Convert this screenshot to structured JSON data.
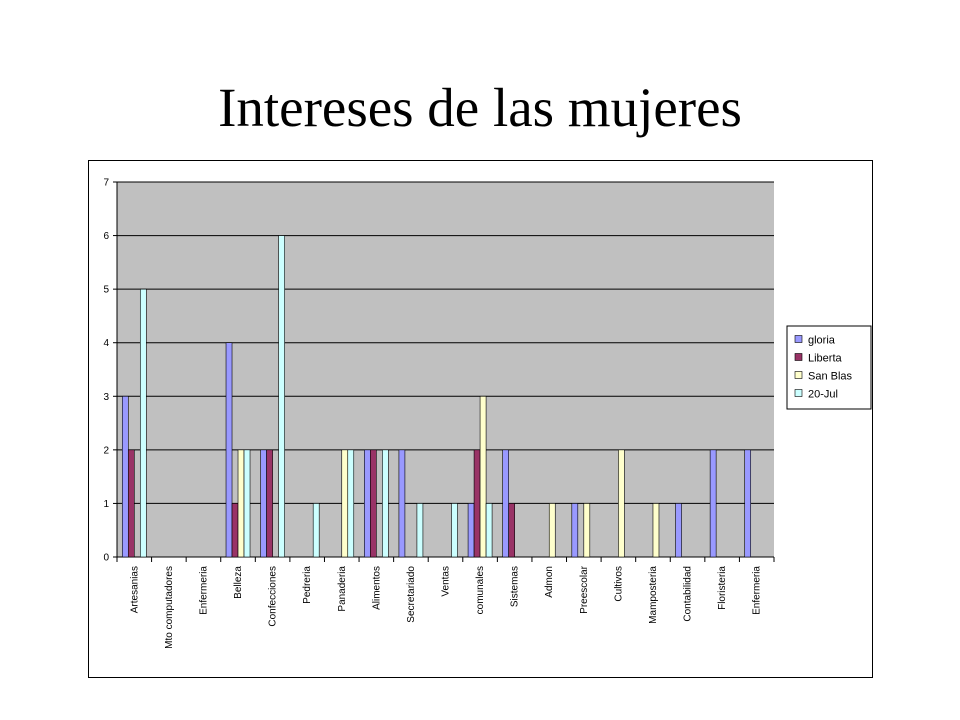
{
  "slide": {
    "title": "Intereses de las mujeres"
  },
  "colors": {
    "plot_bg": "#c0c0c0",
    "gridline": "#000000"
  },
  "chart_data": {
    "type": "bar",
    "title": "",
    "xlabel": "",
    "ylabel": "",
    "ylim": [
      0,
      7
    ],
    "yticks": [
      0,
      1,
      2,
      3,
      4,
      5,
      6,
      7
    ],
    "grid": true,
    "legend_position": "right",
    "categories": [
      "Artesanias",
      "Mto computadores",
      "Enfermeria",
      "Belleza",
      "Confecciones",
      "Pedreria",
      "Panaderia",
      "Alimentos",
      "Secretariado",
      "Ventas",
      "comunales",
      "Sistemas",
      "Admon",
      "Preescolar",
      "Cultivos",
      "Mamposteria",
      "Contabilidad",
      "Floristeria",
      "Enfermeria"
    ],
    "series": [
      {
        "name": "gloria",
        "color": "#9999ff",
        "values": [
          3,
          0,
          0,
          4,
          2,
          0,
          0,
          2,
          2,
          0,
          1,
          2,
          0,
          1,
          0,
          0,
          1,
          2,
          2
        ]
      },
      {
        "name": "Liberta",
        "color": "#993366",
        "values": [
          2,
          0,
          0,
          1,
          2,
          0,
          0,
          2,
          0,
          0,
          2,
          1,
          0,
          0,
          0,
          0,
          0,
          0,
          0
        ]
      },
      {
        "name": "San Blas",
        "color": "#ffffcc",
        "values": [
          0,
          0,
          0,
          2,
          0,
          0,
          2,
          0,
          0,
          0,
          3,
          0,
          1,
          1,
          2,
          1,
          0,
          0,
          0
        ]
      },
      {
        "name": "20-Jul",
        "color": "#ccffff",
        "values": [
          5,
          0,
          0,
          2,
          6,
          1,
          2,
          2,
          1,
          1,
          1,
          0,
          0,
          0,
          0,
          0,
          0,
          0,
          0
        ]
      }
    ]
  }
}
